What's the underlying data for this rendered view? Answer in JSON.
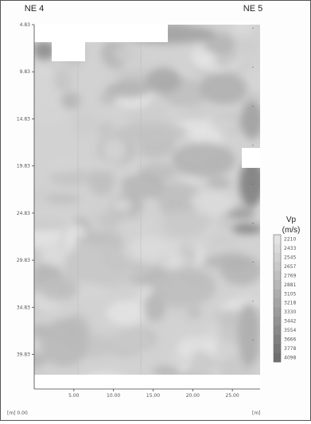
{
  "chart_data": {
    "type": "heatmap",
    "title": "",
    "top_left_label": "NE 4",
    "top_right_label": "NE 5",
    "x_ticks": [
      "5.00",
      "10.00",
      "15.00",
      "20.00",
      "25.00"
    ],
    "x_tick_values": [
      5,
      10,
      15,
      20,
      25
    ],
    "xlim": [
      0,
      28.5
    ],
    "x_unit_label": "[m]",
    "x_origin_label": "[m] 0.00",
    "y_ticks": [
      "4.83",
      "9.83",
      "14.83",
      "19.83",
      "24.83",
      "29.83",
      "34.83",
      "39.83"
    ],
    "y_tick_values": [
      4.83,
      9.83,
      14.83,
      19.83,
      24.83,
      29.83,
      34.83,
      39.83
    ],
    "ylim": [
      4.83,
      43.5
    ],
    "colorbar": {
      "title_line1": "Vp",
      "title_line2": "(m/s)",
      "labels": [
        "2210",
        "2433",
        "2545",
        "2657",
        "2769",
        "2881",
        "3105",
        "3218",
        "3330",
        "3442",
        "3554",
        "3666",
        "3778",
        "4098"
      ],
      "colors": [
        "#e3e3e3",
        "#dadada",
        "#d1d1d1",
        "#c8c8c8",
        "#bfbfbf",
        "#b6b6b6",
        "#adadad",
        "#a4a4a4",
        "#9b9b9b",
        "#929292",
        "#898989",
        "#808080",
        "#777777",
        "#6e6e6e"
      ]
    },
    "grid": false,
    "legend_position": "right"
  }
}
